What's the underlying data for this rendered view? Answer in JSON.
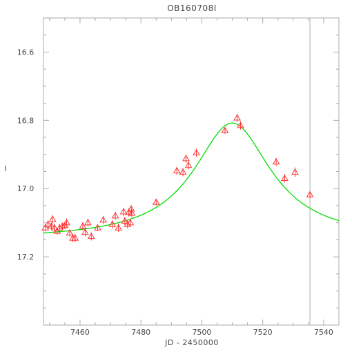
{
  "chart_data": {
    "type": "scatter",
    "title": "OB160708I",
    "xlabel": "JD - 2450000",
    "ylabel": "I",
    "xlim": [
      7448,
      7545
    ],
    "ylim": [
      17.4,
      16.5
    ],
    "y_inverted": true,
    "grid": false,
    "x_ticks": [
      7460,
      7480,
      7500,
      7520,
      7540
    ],
    "y_ticks": [
      16.6,
      16.8,
      17.0,
      17.2
    ],
    "x_tick_labels": [
      "7460",
      "7480",
      "7500",
      "7520",
      "7540"
    ],
    "y_tick_labels": [
      "16.6",
      "16.8",
      "17.0",
      "17.2"
    ],
    "vertical_line_x": 7535.5,
    "model": {
      "color": "#00dd00",
      "peak_x": 7510,
      "peak_mag": 16.808,
      "baseline_mag": 17.15,
      "width": 15.5
    },
    "series": [
      {
        "marker": "triangle",
        "color": "#ff3333",
        "points": [
          [
            7448.6,
            17.115,
            0.01
          ],
          [
            7449.5,
            17.105,
            0.012
          ],
          [
            7450.6,
            17.11,
            0.01
          ],
          [
            7451.0,
            17.09,
            0.012
          ],
          [
            7451.6,
            17.115,
            0.012
          ],
          [
            7452.5,
            17.125,
            0.01
          ],
          [
            7453.3,
            17.115,
            0.01
          ],
          [
            7454.2,
            17.11,
            0.01
          ],
          [
            7455.0,
            17.108,
            0.01
          ],
          [
            7455.6,
            17.1,
            0.012
          ],
          [
            7456.6,
            17.13,
            0.01
          ],
          [
            7457.6,
            17.145,
            0.012
          ],
          [
            7458.4,
            17.145,
            0.012
          ],
          [
            7460.9,
            17.11,
            0.012
          ],
          [
            7461.7,
            17.128,
            0.012
          ],
          [
            7462.6,
            17.1,
            0.012
          ],
          [
            7463.7,
            17.14,
            0.012
          ],
          [
            7465.8,
            17.115,
            0.01
          ],
          [
            7467.6,
            17.092,
            0.012
          ],
          [
            7470.6,
            17.105,
            0.012
          ],
          [
            7471.6,
            17.08,
            0.012
          ],
          [
            7472.6,
            17.115,
            0.012
          ],
          [
            7474.3,
            17.068,
            0.012
          ],
          [
            7474.7,
            17.095,
            0.012
          ],
          [
            7475.6,
            17.105,
            0.012
          ],
          [
            7476.0,
            17.07,
            0.012
          ],
          [
            7476.5,
            17.1,
            0.012
          ],
          [
            7476.8,
            17.06,
            0.012
          ],
          [
            7477.0,
            17.072,
            0.012
          ],
          [
            7485.0,
            17.04,
            0.01
          ],
          [
            7491.8,
            16.948,
            0.012
          ],
          [
            7493.8,
            16.952,
            0.012
          ],
          [
            7494.8,
            16.912,
            0.012
          ],
          [
            7495.6,
            16.932,
            0.012
          ],
          [
            7498.2,
            16.895,
            0.012
          ],
          [
            7507.6,
            16.83,
            0.01
          ],
          [
            7511.6,
            16.793,
            0.012
          ],
          [
            7512.7,
            16.815,
            0.012
          ],
          [
            7524.4,
            16.922,
            0.012
          ],
          [
            7527.2,
            16.97,
            0.012
          ],
          [
            7530.6,
            16.952,
            0.014
          ],
          [
            7535.5,
            17.018,
            0.01
          ]
        ]
      }
    ]
  }
}
